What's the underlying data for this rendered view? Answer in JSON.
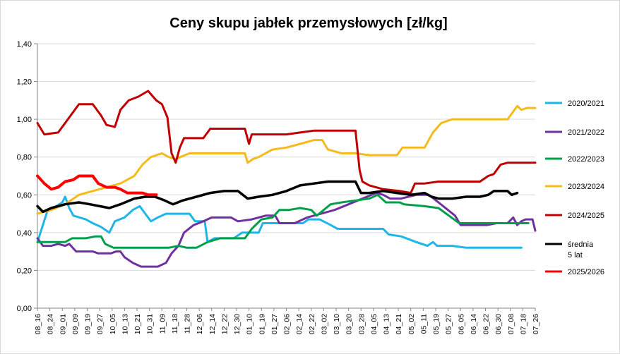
{
  "chart_data": {
    "type": "line",
    "title": "Ceny skupu jabłek przemysłowych [zł/kg]",
    "xlabel": "",
    "ylabel": "",
    "ylim": [
      0,
      1.4
    ],
    "yticks": [
      "0,00",
      "0,20",
      "0,40",
      "0,60",
      "0,80",
      "1,00",
      "1,20",
      "1,40"
    ],
    "grid": true,
    "legend_position": "right",
    "x_categories": [
      "08_16",
      "08_24",
      "09_01",
      "09_09",
      "09_19",
      "09_27",
      "10_05",
      "10_13",
      "10_21",
      "10_31",
      "11_09",
      "11_18",
      "11_28",
      "12_06",
      "12_14",
      "12_22",
      "12_30",
      "01_10",
      "01_19",
      "01_27",
      "02_06",
      "02_14",
      "02_22",
      "03_02",
      "03_10",
      "03_20",
      "03_28",
      "04_05",
      "04_13",
      "04_21",
      "05_02",
      "05_11",
      "05_19",
      "05_27",
      "06_05",
      "06_14",
      "06_22",
      "06_30",
      "07_08",
      "07_18",
      "07_26"
    ],
    "series": [
      {
        "name": "2020/2021",
        "color": "#1fb5e8",
        "width": 3,
        "points": [
          [
            0,
            0.35
          ],
          [
            0.7,
            0.51
          ],
          [
            1.8,
            0.56
          ],
          [
            2,
            0.59
          ],
          [
            2.3,
            0.53
          ],
          [
            2.6,
            0.49
          ],
          [
            3.5,
            0.47
          ],
          [
            4,
            0.45
          ],
          [
            4.6,
            0.43
          ],
          [
            5.2,
            0.4
          ],
          [
            5.6,
            0.46
          ],
          [
            6.3,
            0.48
          ],
          [
            6.9,
            0.52
          ],
          [
            7.4,
            0.54
          ],
          [
            7.8,
            0.5
          ],
          [
            8.2,
            0.46
          ],
          [
            8.7,
            0.48
          ],
          [
            9.3,
            0.5
          ],
          [
            11,
            0.5
          ],
          [
            11.4,
            0.46
          ],
          [
            12.1,
            0.46
          ],
          [
            12.3,
            0.35
          ],
          [
            12.8,
            0.37
          ],
          [
            14.2,
            0.37
          ],
          [
            14.8,
            0.4
          ],
          [
            16,
            0.4
          ],
          [
            16.3,
            0.45
          ],
          [
            19.2,
            0.45
          ],
          [
            19.6,
            0.47
          ],
          [
            20.4,
            0.47
          ],
          [
            21.2,
            0.44
          ],
          [
            21.7,
            0.42
          ],
          [
            24,
            0.42
          ],
          [
            25,
            0.42
          ],
          [
            25.4,
            0.39
          ],
          [
            26.3,
            0.38
          ],
          [
            27.4,
            0.35
          ],
          [
            28.2,
            0.33
          ],
          [
            28.6,
            0.35
          ],
          [
            28.9,
            0.33
          ],
          [
            30,
            0.33
          ],
          [
            31,
            0.32
          ],
          [
            32.5,
            0.32
          ],
          [
            34,
            0.32
          ],
          [
            35,
            0.32
          ]
        ]
      },
      {
        "name": "2021/2022",
        "color": "#7030a0",
        "width": 3,
        "points": [
          [
            0,
            0.37
          ],
          [
            0.4,
            0.33
          ],
          [
            1,
            0.33
          ],
          [
            1.5,
            0.34
          ],
          [
            2,
            0.33
          ],
          [
            2.3,
            0.34
          ],
          [
            2.8,
            0.3
          ],
          [
            4,
            0.3
          ],
          [
            4.4,
            0.29
          ],
          [
            5.3,
            0.29
          ],
          [
            5.7,
            0.3
          ],
          [
            6,
            0.3
          ],
          [
            6.3,
            0.27
          ],
          [
            6.9,
            0.24
          ],
          [
            7.5,
            0.22
          ],
          [
            8,
            0.22
          ],
          [
            8.7,
            0.22
          ],
          [
            9.3,
            0.24
          ],
          [
            9.7,
            0.29
          ],
          [
            10.2,
            0.33
          ],
          [
            10.6,
            0.4
          ],
          [
            11.3,
            0.44
          ],
          [
            12,
            0.46
          ],
          [
            12.6,
            0.48
          ],
          [
            14,
            0.48
          ],
          [
            14.5,
            0.46
          ],
          [
            15.5,
            0.47
          ],
          [
            16,
            0.48
          ],
          [
            16.5,
            0.49
          ],
          [
            17.2,
            0.49
          ],
          [
            17.5,
            0.45
          ],
          [
            18.6,
            0.45
          ],
          [
            19.5,
            0.48
          ],
          [
            20.5,
            0.5
          ],
          [
            21.5,
            0.52
          ],
          [
            22.5,
            0.55
          ],
          [
            23.5,
            0.58
          ],
          [
            24.5,
            0.61
          ],
          [
            25,
            0.6
          ],
          [
            25.5,
            0.58
          ],
          [
            26.3,
            0.58
          ],
          [
            27.4,
            0.6
          ],
          [
            28.3,
            0.6
          ],
          [
            29,
            0.56
          ],
          [
            30.2,
            0.49
          ],
          [
            30.6,
            0.44
          ],
          [
            32.5,
            0.44
          ],
          [
            33.2,
            0.45
          ],
          [
            34,
            0.45
          ],
          [
            34.4,
            0.48
          ],
          [
            34.7,
            0.44
          ],
          [
            35,
            0.46
          ],
          [
            35.3,
            0.47
          ],
          [
            35.8,
            0.47
          ],
          [
            36,
            0.41
          ]
        ]
      },
      {
        "name": "2022/2023",
        "color": "#00a04b",
        "width": 3,
        "points": [
          [
            0,
            0.35
          ],
          [
            2,
            0.35
          ],
          [
            2.5,
            0.37
          ],
          [
            3.5,
            0.37
          ],
          [
            4.2,
            0.38
          ],
          [
            4.6,
            0.38
          ],
          [
            4.9,
            0.34
          ],
          [
            5.5,
            0.32
          ],
          [
            9.5,
            0.32
          ],
          [
            10.2,
            0.33
          ],
          [
            10.8,
            0.32
          ],
          [
            11.5,
            0.32
          ],
          [
            12.3,
            0.35
          ],
          [
            13.2,
            0.37
          ],
          [
            15,
            0.37
          ],
          [
            15.5,
            0.42
          ],
          [
            16.2,
            0.47
          ],
          [
            17,
            0.48
          ],
          [
            17.5,
            0.52
          ],
          [
            18.2,
            0.52
          ],
          [
            19,
            0.53
          ],
          [
            19.8,
            0.52
          ],
          [
            20.2,
            0.49
          ],
          [
            21.2,
            0.55
          ],
          [
            22,
            0.56
          ],
          [
            23,
            0.57
          ],
          [
            24,
            0.58
          ],
          [
            24.6,
            0.6
          ],
          [
            25.2,
            0.56
          ],
          [
            26.2,
            0.56
          ],
          [
            26.5,
            0.55
          ],
          [
            28,
            0.54
          ],
          [
            29,
            0.53
          ],
          [
            30.5,
            0.45
          ],
          [
            33,
            0.45
          ],
          [
            34.5,
            0.45
          ],
          [
            35.5,
            0.45
          ]
        ]
      },
      {
        "name": "2023/2024",
        "color": "#f5bb1d",
        "width": 3,
        "points": [
          [
            0,
            0.5
          ],
          [
            1,
            0.52
          ],
          [
            2,
            0.55
          ],
          [
            3,
            0.6
          ],
          [
            4,
            0.62
          ],
          [
            5,
            0.64
          ],
          [
            6,
            0.66
          ],
          [
            7,
            0.7
          ],
          [
            7.6,
            0.76
          ],
          [
            8.2,
            0.8
          ],
          [
            9,
            0.82
          ],
          [
            9.5,
            0.8
          ],
          [
            10,
            0.79
          ],
          [
            11,
            0.82
          ],
          [
            12,
            0.82
          ],
          [
            13,
            0.82
          ],
          [
            14,
            0.82
          ],
          [
            15,
            0.82
          ],
          [
            15.2,
            0.77
          ],
          [
            15.6,
            0.79
          ],
          [
            16,
            0.8
          ],
          [
            17,
            0.84
          ],
          [
            18,
            0.85
          ],
          [
            19,
            0.87
          ],
          [
            20,
            0.89
          ],
          [
            20.6,
            0.89
          ],
          [
            21,
            0.84
          ],
          [
            22,
            0.82
          ],
          [
            23,
            0.82
          ],
          [
            24,
            0.81
          ],
          [
            25,
            0.81
          ],
          [
            26,
            0.81
          ],
          [
            26.4,
            0.85
          ],
          [
            28,
            0.85
          ],
          [
            28.6,
            0.93
          ],
          [
            29.2,
            0.98
          ],
          [
            30,
            1
          ],
          [
            32,
            1
          ],
          [
            33,
            1
          ],
          [
            34,
            1
          ],
          [
            34.4,
            1.04
          ],
          [
            34.7,
            1.07
          ],
          [
            35,
            1.05
          ],
          [
            35.4,
            1.06
          ],
          [
            36,
            1.06
          ]
        ]
      },
      {
        "name": "2024/2025",
        "color": "#c00000",
        "width": 3,
        "points": [
          [
            0,
            0.98
          ],
          [
            0.5,
            0.92
          ],
          [
            1.5,
            0.93
          ],
          [
            2,
            0.98
          ],
          [
            2.5,
            1.03
          ],
          [
            3,
            1.08
          ],
          [
            4,
            1.08
          ],
          [
            4.6,
            1.02
          ],
          [
            5,
            0.97
          ],
          [
            5.6,
            0.96
          ],
          [
            6,
            1.05
          ],
          [
            6.6,
            1.1
          ],
          [
            7.3,
            1.12
          ],
          [
            8,
            1.15
          ],
          [
            8.6,
            1.1
          ],
          [
            9,
            1.08
          ],
          [
            9.4,
            1.01
          ],
          [
            9.7,
            0.82
          ],
          [
            10,
            0.77
          ],
          [
            10.3,
            0.85
          ],
          [
            10.6,
            0.9
          ],
          [
            12,
            0.9
          ],
          [
            12.5,
            0.95
          ],
          [
            15,
            0.95
          ],
          [
            15.3,
            0.87
          ],
          [
            15.5,
            0.92
          ],
          [
            17,
            0.92
          ],
          [
            18,
            0.92
          ],
          [
            19,
            0.93
          ],
          [
            20,
            0.94
          ],
          [
            21,
            0.94
          ],
          [
            22,
            0.94
          ],
          [
            23,
            0.94
          ],
          [
            23.3,
            0.73
          ],
          [
            23.5,
            0.67
          ],
          [
            24,
            0.65
          ],
          [
            25,
            0.63
          ],
          [
            26.2,
            0.62
          ],
          [
            27,
            0.61
          ],
          [
            27.3,
            0.66
          ],
          [
            28,
            0.66
          ],
          [
            29,
            0.67
          ],
          [
            31,
            0.67
          ],
          [
            32,
            0.67
          ],
          [
            32.6,
            0.7
          ],
          [
            33,
            0.71
          ],
          [
            33.5,
            0.76
          ],
          [
            34,
            0.77
          ],
          [
            36,
            0.77
          ]
        ]
      },
      {
        "name": "średnia 5 lat",
        "color": "#000000",
        "width": 3.5,
        "points": [
          [
            0,
            0.54
          ],
          [
            0.4,
            0.51
          ],
          [
            1,
            0.53
          ],
          [
            2,
            0.55
          ],
          [
            3,
            0.56
          ],
          [
            3.8,
            0.55
          ],
          [
            4.5,
            0.54
          ],
          [
            5.2,
            0.53
          ],
          [
            6,
            0.55
          ],
          [
            7,
            0.58
          ],
          [
            7.8,
            0.59
          ],
          [
            8.5,
            0.59
          ],
          [
            9.2,
            0.57
          ],
          [
            9.8,
            0.55
          ],
          [
            10.5,
            0.57
          ],
          [
            11.5,
            0.59
          ],
          [
            12.5,
            0.61
          ],
          [
            13.5,
            0.62
          ],
          [
            14.5,
            0.62
          ],
          [
            15.2,
            0.58
          ],
          [
            16,
            0.59
          ],
          [
            17,
            0.6
          ],
          [
            18,
            0.62
          ],
          [
            19,
            0.65
          ],
          [
            20,
            0.66
          ],
          [
            21,
            0.67
          ],
          [
            22,
            0.67
          ],
          [
            23,
            0.67
          ],
          [
            23.4,
            0.61
          ],
          [
            24,
            0.61
          ],
          [
            25,
            0.62
          ],
          [
            26,
            0.61
          ],
          [
            27,
            0.6
          ],
          [
            28,
            0.61
          ],
          [
            28.5,
            0.59
          ],
          [
            29,
            0.58
          ],
          [
            30,
            0.58
          ],
          [
            31,
            0.59
          ],
          [
            32,
            0.59
          ],
          [
            32.6,
            0.6
          ],
          [
            33,
            0.62
          ],
          [
            34,
            0.62
          ],
          [
            34.3,
            0.6
          ],
          [
            34.7,
            0.61
          ]
        ]
      },
      {
        "name": "2025/2026",
        "color": "#ff0000",
        "width": 4,
        "points": [
          [
            0,
            0.7
          ],
          [
            0.5,
            0.66
          ],
          [
            1,
            0.63
          ],
          [
            1.5,
            0.64
          ],
          [
            2,
            0.67
          ],
          [
            2.6,
            0.68
          ],
          [
            3,
            0.7
          ],
          [
            4,
            0.7
          ],
          [
            4.4,
            0.66
          ],
          [
            5,
            0.64
          ],
          [
            5.6,
            0.64
          ],
          [
            6,
            0.63
          ],
          [
            6.5,
            0.61
          ],
          [
            7.6,
            0.61
          ],
          [
            8,
            0.6
          ],
          [
            8.6,
            0.6
          ]
        ]
      }
    ]
  }
}
